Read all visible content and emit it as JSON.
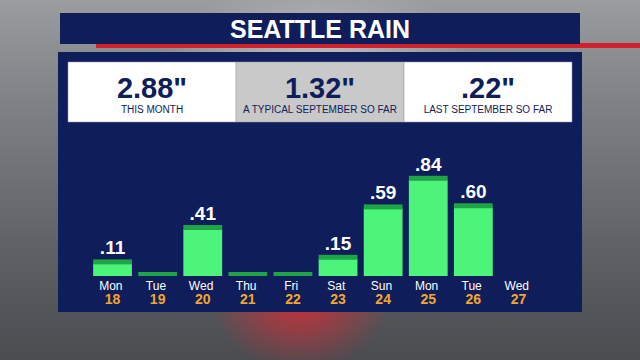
{
  "chart_data": {
    "type": "bar",
    "title": "SEATTLE RAIN",
    "annotations": [
      {
        "text": "2.88\"",
        "caption": "THIS MONTH"
      },
      {
        "text": "1.32\"",
        "caption": "A TYPICAL SEPTEMBER SO FAR"
      },
      {
        "text": ".22\"",
        "caption": "LAST SEPTEMBER SO FAR"
      }
    ],
    "categories": [
      "Mon 18",
      "Tue 19",
      "Wed 20",
      "Thu 21",
      "Fri 22",
      "Sat 23",
      "Sun 24",
      "Mon 25",
      "Tue 26",
      "Wed 27"
    ],
    "values": [
      0.11,
      0,
      0.41,
      0,
      0,
      0.15,
      0.59,
      0.84,
      0.6,
      null
    ],
    "value_labels": [
      ".11",
      null,
      ".41",
      null,
      null,
      ".15",
      ".59",
      ".84",
      ".60",
      null
    ],
    "color": "#4cf57a",
    "ylim": [
      0,
      1.1
    ],
    "grid": false,
    "tick_labels": false,
    "data_labels": true
  }
}
